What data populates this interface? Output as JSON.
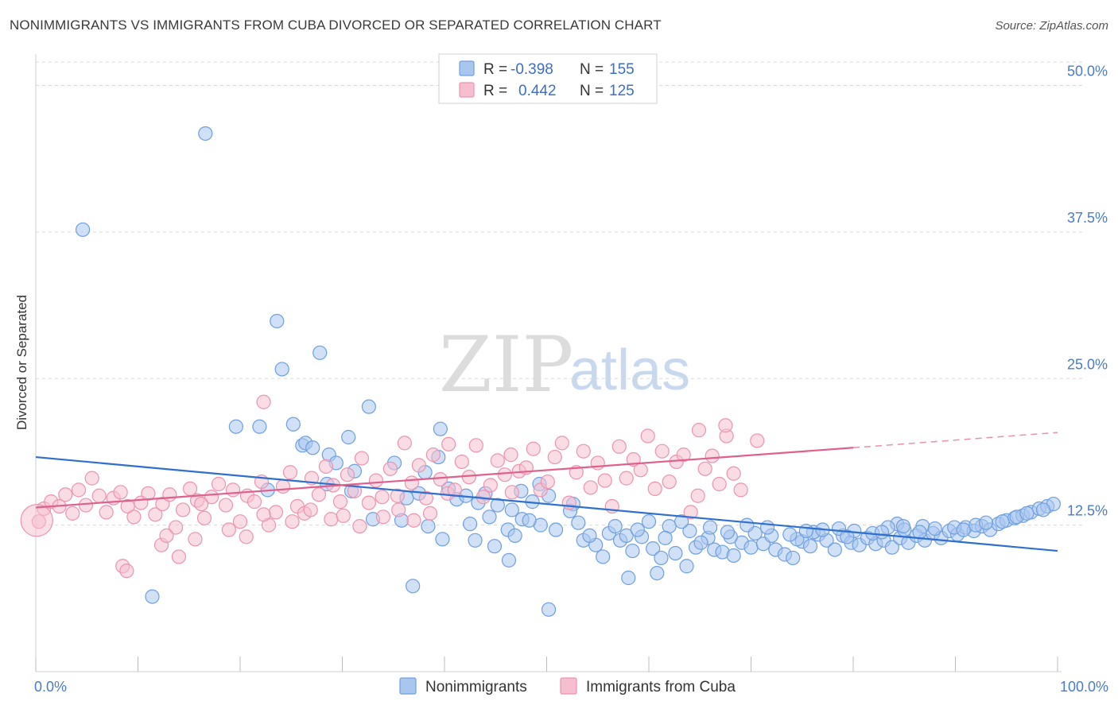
{
  "header": {
    "title": "NONIMMIGRANTS VS IMMIGRANTS FROM CUBA DIVORCED OR SEPARATED CORRELATION CHART",
    "source": "Source: ZipAtlas.com"
  },
  "watermark": {
    "zip": "ZIP",
    "atlas": "atlas"
  },
  "colors": {
    "blue_fill": "#a9c6ee",
    "blue_stroke": "#6f9fe0",
    "blue_line": "#2f6fcf",
    "pink_fill": "#f6bfd0",
    "pink_stroke": "#ec93b0",
    "pink_line": "#e0608d",
    "grid": "#d9d9d9",
    "tick_label": "#4a7cc9"
  },
  "legend": {
    "rows": [
      {
        "r_label": "R =",
        "r_value": "-0.398",
        "n_label": "N =",
        "n_value": "155"
      },
      {
        "r_label": "R =",
        "r_value": "0.442",
        "n_label": "N =",
        "n_value": "125"
      }
    ]
  },
  "chart_data": {
    "type": "scatter",
    "xlabel": "",
    "ylabel": "Divorced or Separated",
    "xlim": [
      0,
      100
    ],
    "ylim": [
      0,
      52
    ],
    "x_tick_labels": [
      "0.0%",
      "100.0%"
    ],
    "y_ticks": [
      12.5,
      25.0,
      37.5,
      50.0
    ],
    "y_tick_labels": [
      "12.5%",
      "25.0%",
      "37.5%",
      "50.0%"
    ],
    "grid": "horizontal dashed",
    "legend_position": "bottom",
    "series": [
      {
        "name": "Nonimmigrants",
        "trend": {
          "x": [
            0,
            100
          ],
          "y": [
            18.3,
            10.3
          ]
        },
        "points": [
          [
            4.6,
            37.7
          ],
          [
            16.6,
            45.9
          ],
          [
            11.4,
            6.4
          ],
          [
            23.6,
            29.9
          ],
          [
            27.8,
            27.2
          ],
          [
            24.1,
            25.8
          ],
          [
            32.6,
            22.6
          ],
          [
            19.6,
            20.9
          ],
          [
            21.9,
            20.9
          ],
          [
            25.2,
            21.1
          ],
          [
            26.1,
            19.3
          ],
          [
            28.7,
            18.5
          ],
          [
            30.6,
            20.0
          ],
          [
            39.6,
            20.7
          ],
          [
            26.4,
            19.5
          ],
          [
            27.1,
            19.1
          ],
          [
            29.4,
            17.8
          ],
          [
            31.2,
            17.1
          ],
          [
            35.1,
            17.8
          ],
          [
            38.1,
            17.0
          ],
          [
            39.4,
            18.3
          ],
          [
            22.7,
            15.5
          ],
          [
            28.5,
            16.0
          ],
          [
            30.9,
            15.4
          ],
          [
            36.3,
            14.8
          ],
          [
            37.5,
            15.2
          ],
          [
            40.4,
            15.6
          ],
          [
            41.2,
            14.7
          ],
          [
            42.1,
            15.0
          ],
          [
            43.3,
            14.4
          ],
          [
            44.0,
            15.2
          ],
          [
            45.2,
            14.2
          ],
          [
            46.6,
            13.8
          ],
          [
            47.5,
            15.4
          ],
          [
            48.6,
            14.5
          ],
          [
            49.3,
            16.0
          ],
          [
            50.2,
            15.0
          ],
          [
            52.6,
            14.3
          ],
          [
            33.0,
            13.0
          ],
          [
            35.8,
            12.9
          ],
          [
            38.4,
            12.4
          ],
          [
            39.8,
            11.3
          ],
          [
            43.0,
            11.2
          ],
          [
            44.9,
            10.7
          ],
          [
            46.2,
            12.1
          ],
          [
            47.6,
            13.0
          ],
          [
            49.4,
            12.5
          ],
          [
            52.3,
            13.7
          ],
          [
            53.6,
            11.2
          ],
          [
            54.8,
            10.8
          ],
          [
            56.1,
            11.8
          ],
          [
            57.2,
            11.2
          ],
          [
            58.4,
            10.3
          ],
          [
            59.3,
            11.5
          ],
          [
            60.4,
            10.5
          ],
          [
            61.2,
            9.7
          ],
          [
            62.6,
            10.1
          ],
          [
            63.7,
            9.0
          ],
          [
            64.6,
            10.6
          ],
          [
            65.8,
            11.4
          ],
          [
            66.4,
            10.4
          ],
          [
            67.2,
            10.2
          ],
          [
            68.3,
            9.9
          ],
          [
            69.1,
            11.0
          ],
          [
            70.0,
            10.6
          ],
          [
            71.2,
            10.9
          ],
          [
            72.4,
            10.4
          ],
          [
            73.3,
            10.0
          ],
          [
            74.1,
            9.7
          ],
          [
            75.0,
            11.1
          ],
          [
            75.8,
            10.7
          ],
          [
            76.6,
            11.7
          ],
          [
            77.4,
            11.2
          ],
          [
            78.2,
            10.4
          ],
          [
            79.0,
            11.6
          ],
          [
            79.8,
            11.0
          ],
          [
            80.6,
            10.8
          ],
          [
            81.4,
            11.4
          ],
          [
            82.2,
            10.9
          ],
          [
            83.0,
            11.2
          ],
          [
            83.8,
            10.6
          ],
          [
            84.6,
            11.4
          ],
          [
            85.4,
            11.0
          ],
          [
            86.2,
            11.6
          ],
          [
            87.0,
            11.2
          ],
          [
            87.8,
            11.8
          ],
          [
            88.6,
            11.4
          ],
          [
            89.4,
            12.0
          ],
          [
            90.2,
            11.7
          ],
          [
            91.0,
            12.3
          ],
          [
            91.8,
            12.0
          ],
          [
            92.6,
            12.4
          ],
          [
            93.4,
            12.1
          ],
          [
            94.2,
            12.6
          ],
          [
            95.0,
            12.9
          ],
          [
            95.8,
            13.1
          ],
          [
            96.6,
            13.3
          ],
          [
            97.4,
            13.6
          ],
          [
            98.2,
            13.9
          ],
          [
            99.0,
            14.1
          ],
          [
            99.6,
            14.3
          ],
          [
            84.3,
            12.6
          ],
          [
            86.8,
            12.4
          ],
          [
            88.0,
            12.2
          ],
          [
            89.9,
            12.3
          ],
          [
            90.8,
            12.1
          ],
          [
            92.0,
            12.5
          ],
          [
            93.0,
            12.7
          ],
          [
            94.6,
            12.8
          ],
          [
            96.0,
            13.2
          ],
          [
            97.0,
            13.5
          ],
          [
            98.6,
            13.8
          ],
          [
            55.5,
            9.8
          ],
          [
            57.8,
            11.6
          ],
          [
            60.0,
            12.8
          ],
          [
            62.0,
            12.4
          ],
          [
            64.0,
            12.0
          ],
          [
            66.0,
            12.3
          ],
          [
            68.0,
            11.5
          ],
          [
            70.4,
            11.8
          ],
          [
            72.0,
            11.6
          ],
          [
            74.5,
            11.3
          ],
          [
            76.1,
            11.9
          ],
          [
            78.6,
            12.2
          ],
          [
            80.1,
            12.0
          ],
          [
            81.9,
            11.8
          ],
          [
            83.4,
            12.3
          ],
          [
            85.0,
            12.1
          ],
          [
            86.5,
            11.9
          ],
          [
            42.5,
            12.6
          ],
          [
            44.4,
            13.2
          ],
          [
            46.9,
            11.6
          ],
          [
            48.3,
            12.9
          ],
          [
            50.9,
            12.1
          ],
          [
            53.1,
            12.7
          ],
          [
            54.2,
            11.6
          ],
          [
            56.7,
            12.4
          ],
          [
            58.9,
            12.1
          ],
          [
            61.6,
            11.4
          ],
          [
            63.2,
            12.8
          ],
          [
            65.1,
            11.0
          ],
          [
            67.7,
            11.9
          ],
          [
            69.6,
            12.5
          ],
          [
            71.6,
            12.3
          ],
          [
            73.8,
            11.7
          ],
          [
            75.4,
            12.0
          ],
          [
            77.0,
            12.1
          ],
          [
            79.4,
            11.5
          ],
          [
            82.8,
            11.9
          ],
          [
            84.9,
            12.4
          ],
          [
            36.9,
            7.3
          ],
          [
            50.2,
            5.3
          ],
          [
            58.0,
            8.0
          ],
          [
            60.8,
            8.4
          ],
          [
            46.3,
            9.5
          ]
        ]
      },
      {
        "name": "Immigrants from Cuba",
        "trend": {
          "x": [
            0,
            80
          ],
          "y": [
            14.0,
            19.1
          ]
        },
        "trend_dashed": {
          "x": [
            80,
            100
          ],
          "y": [
            19.1,
            20.4
          ]
        },
        "points": [
          [
            0.3,
            12.8
          ],
          [
            0.8,
            13.9
          ],
          [
            1.5,
            14.5
          ],
          [
            2.3,
            14.1
          ],
          [
            2.9,
            15.1
          ],
          [
            3.6,
            13.5
          ],
          [
            4.2,
            15.5
          ],
          [
            4.9,
            14.2
          ],
          [
            5.5,
            16.5
          ],
          [
            6.2,
            15.0
          ],
          [
            6.9,
            13.6
          ],
          [
            7.6,
            14.8
          ],
          [
            8.3,
            15.3
          ],
          [
            9.0,
            14.1
          ],
          [
            9.6,
            13.2
          ],
          [
            10.3,
            14.4
          ],
          [
            11.0,
            15.2
          ],
          [
            11.7,
            13.4
          ],
          [
            12.4,
            14.3
          ],
          [
            13.1,
            15.1
          ],
          [
            13.7,
            12.3
          ],
          [
            14.4,
            13.8
          ],
          [
            15.1,
            15.6
          ],
          [
            15.8,
            14.6
          ],
          [
            16.5,
            13.1
          ],
          [
            17.2,
            14.9
          ],
          [
            17.9,
            16.0
          ],
          [
            18.6,
            14.2
          ],
          [
            19.3,
            15.5
          ],
          [
            20.0,
            12.8
          ],
          [
            20.7,
            15.0
          ],
          [
            21.4,
            14.5
          ],
          [
            22.1,
            16.2
          ],
          [
            22.8,
            12.5
          ],
          [
            23.5,
            13.6
          ],
          [
            24.2,
            15.8
          ],
          [
            24.9,
            17.0
          ],
          [
            25.6,
            14.1
          ],
          [
            26.3,
            13.5
          ],
          [
            27.0,
            16.5
          ],
          [
            27.7,
            15.1
          ],
          [
            28.4,
            17.5
          ],
          [
            29.1,
            15.9
          ],
          [
            29.8,
            14.5
          ],
          [
            30.5,
            16.8
          ],
          [
            31.2,
            15.4
          ],
          [
            31.9,
            18.2
          ],
          [
            32.6,
            14.4
          ],
          [
            33.3,
            16.3
          ],
          [
            34.0,
            13.2
          ],
          [
            34.7,
            17.3
          ],
          [
            35.4,
            15.0
          ],
          [
            36.1,
            19.5
          ],
          [
            36.8,
            16.1
          ],
          [
            37.5,
            17.6
          ],
          [
            38.2,
            14.8
          ],
          [
            38.9,
            18.5
          ],
          [
            39.6,
            16.4
          ],
          [
            40.3,
            15.2
          ],
          [
            41.0,
            15.5
          ],
          [
            41.7,
            17.9
          ],
          [
            42.4,
            16.6
          ],
          [
            43.1,
            19.3
          ],
          [
            43.8,
            14.9
          ],
          [
            44.5,
            15.9
          ],
          [
            45.2,
            18.0
          ],
          [
            45.9,
            16.8
          ],
          [
            46.6,
            15.3
          ],
          [
            47.3,
            17.1
          ],
          [
            48.0,
            17.4
          ],
          [
            48.7,
            19.0
          ],
          [
            49.4,
            15.5
          ],
          [
            50.1,
            16.2
          ],
          [
            50.8,
            18.3
          ],
          [
            51.5,
            19.5
          ],
          [
            52.2,
            14.4
          ],
          [
            52.9,
            17.0
          ],
          [
            53.6,
            18.8
          ],
          [
            54.3,
            15.7
          ],
          [
            55.0,
            17.8
          ],
          [
            55.7,
            16.3
          ],
          [
            56.4,
            14.1
          ],
          [
            57.1,
            19.2
          ],
          [
            57.8,
            16.5
          ],
          [
            58.5,
            18.1
          ],
          [
            59.2,
            17.2
          ],
          [
            59.9,
            20.1
          ],
          [
            60.6,
            15.6
          ],
          [
            61.3,
            18.8
          ],
          [
            62.0,
            16.2
          ],
          [
            62.7,
            17.9
          ],
          [
            63.4,
            18.5
          ],
          [
            64.1,
            13.6
          ],
          [
            64.8,
            15.0
          ],
          [
            65.5,
            17.3
          ],
          [
            66.2,
            18.4
          ],
          [
            66.9,
            16.0
          ],
          [
            67.6,
            20.1
          ],
          [
            68.3,
            16.9
          ],
          [
            69.0,
            15.5
          ],
          [
            8.5,
            9.0
          ],
          [
            8.9,
            8.6
          ],
          [
            12.3,
            10.8
          ],
          [
            12.8,
            11.6
          ],
          [
            14.0,
            9.8
          ],
          [
            15.6,
            11.3
          ],
          [
            18.9,
            12.1
          ],
          [
            20.6,
            11.5
          ],
          [
            22.3,
            13.4
          ],
          [
            25.1,
            12.8
          ],
          [
            26.9,
            13.8
          ],
          [
            28.9,
            13.0
          ],
          [
            30.1,
            13.3
          ],
          [
            31.7,
            12.4
          ],
          [
            33.9,
            14.9
          ],
          [
            35.5,
            13.8
          ],
          [
            37.0,
            12.9
          ],
          [
            38.6,
            13.5
          ],
          [
            22.3,
            23.0
          ],
          [
            40.4,
            19.4
          ],
          [
            46.5,
            18.5
          ],
          [
            64.9,
            20.6
          ],
          [
            67.5,
            21.0
          ],
          [
            70.6,
            19.7
          ],
          [
            16.2,
            14.3
          ]
        ]
      }
    ]
  },
  "bottom_legend": [
    "Nonimmigrants",
    "Immigrants from Cuba"
  ]
}
